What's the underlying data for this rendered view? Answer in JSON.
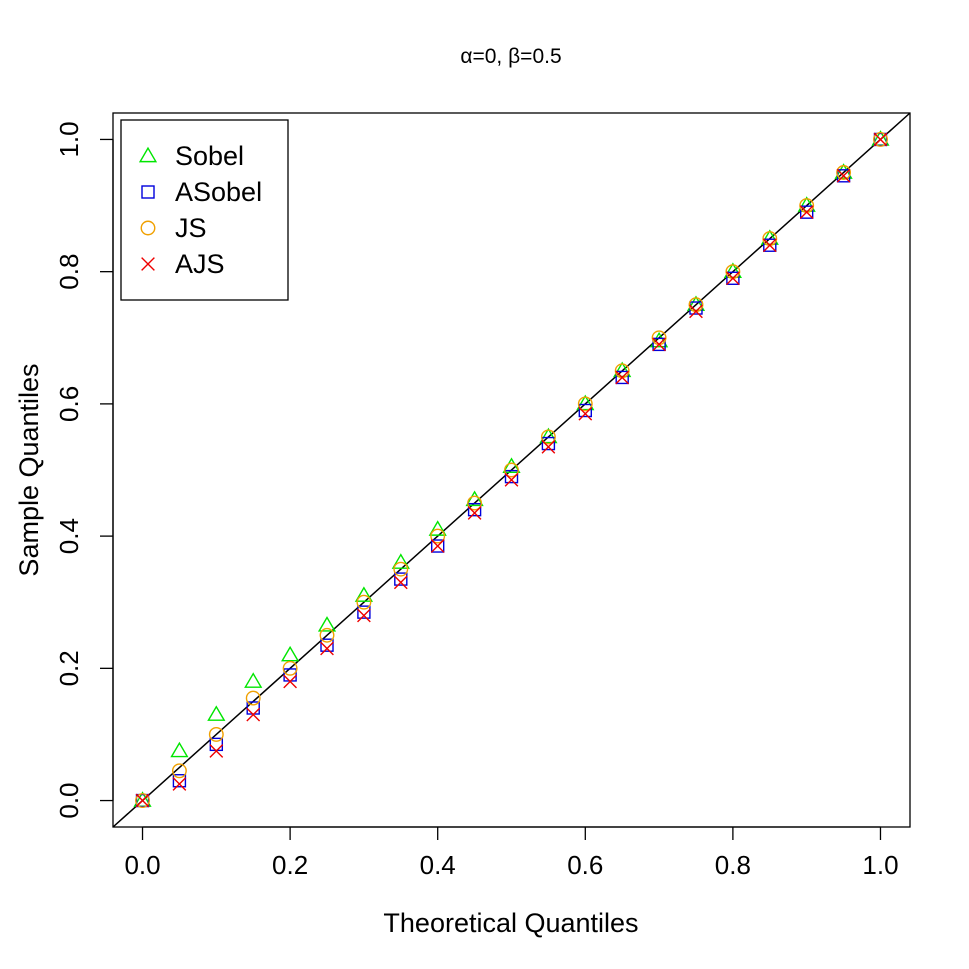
{
  "chart_data": {
    "type": "scatter",
    "title": "α=0, β=0.5",
    "xlabel": "Theoretical Quantiles",
    "ylabel": "Sample Quantiles",
    "xlim": [
      -0.04,
      1.04
    ],
    "ylim": [
      -0.04,
      1.04
    ],
    "x_ticks": [
      "0.0",
      "0.2",
      "0.4",
      "0.6",
      "0.8",
      "1.0"
    ],
    "y_ticks": [
      "0.0",
      "0.2",
      "0.4",
      "0.6",
      "0.8",
      "1.0"
    ],
    "grid": false,
    "legend_position": "top-left",
    "reference_line": "y = x",
    "series": [
      {
        "name": "Sobel",
        "marker": "triangle",
        "color": "#00e600",
        "x": [
          0.0,
          0.05,
          0.1,
          0.15,
          0.2,
          0.25,
          0.3,
          0.35,
          0.4,
          0.45,
          0.5,
          0.55,
          0.6,
          0.65,
          0.7,
          0.75,
          0.8,
          0.85,
          0.9,
          0.95,
          1.0
        ],
        "y": [
          0.0,
          0.075,
          0.13,
          0.18,
          0.22,
          0.265,
          0.31,
          0.36,
          0.41,
          0.455,
          0.505,
          0.55,
          0.6,
          0.65,
          0.695,
          0.75,
          0.8,
          0.85,
          0.9,
          0.95,
          1.0
        ]
      },
      {
        "name": "ASobel",
        "marker": "square",
        "color": "#0000dd",
        "x": [
          0.0,
          0.05,
          0.1,
          0.15,
          0.2,
          0.25,
          0.3,
          0.35,
          0.4,
          0.45,
          0.5,
          0.55,
          0.6,
          0.65,
          0.7,
          0.75,
          0.8,
          0.85,
          0.9,
          0.95,
          1.0
        ],
        "y": [
          0.0,
          0.03,
          0.085,
          0.14,
          0.19,
          0.235,
          0.285,
          0.335,
          0.385,
          0.44,
          0.49,
          0.54,
          0.59,
          0.64,
          0.69,
          0.745,
          0.79,
          0.84,
          0.89,
          0.945,
          1.0
        ]
      },
      {
        "name": "JS",
        "marker": "circle",
        "color": "#f0a000",
        "x": [
          0.0,
          0.05,
          0.1,
          0.15,
          0.2,
          0.25,
          0.3,
          0.35,
          0.4,
          0.45,
          0.5,
          0.55,
          0.6,
          0.65,
          0.7,
          0.75,
          0.8,
          0.85,
          0.9,
          0.95,
          1.0
        ],
        "y": [
          0.0,
          0.045,
          0.1,
          0.155,
          0.2,
          0.25,
          0.3,
          0.35,
          0.4,
          0.45,
          0.5,
          0.55,
          0.6,
          0.65,
          0.7,
          0.75,
          0.8,
          0.85,
          0.9,
          0.95,
          1.0
        ]
      },
      {
        "name": "AJS",
        "marker": "cross",
        "color": "#ee0000",
        "x": [
          0.0,
          0.05,
          0.1,
          0.15,
          0.2,
          0.25,
          0.3,
          0.35,
          0.4,
          0.45,
          0.5,
          0.55,
          0.6,
          0.65,
          0.7,
          0.75,
          0.8,
          0.85,
          0.9,
          0.95,
          1.0
        ],
        "y": [
          0.0,
          0.025,
          0.075,
          0.13,
          0.18,
          0.23,
          0.28,
          0.33,
          0.385,
          0.435,
          0.485,
          0.535,
          0.585,
          0.64,
          0.69,
          0.74,
          0.79,
          0.84,
          0.89,
          0.945,
          1.0
        ]
      }
    ]
  }
}
